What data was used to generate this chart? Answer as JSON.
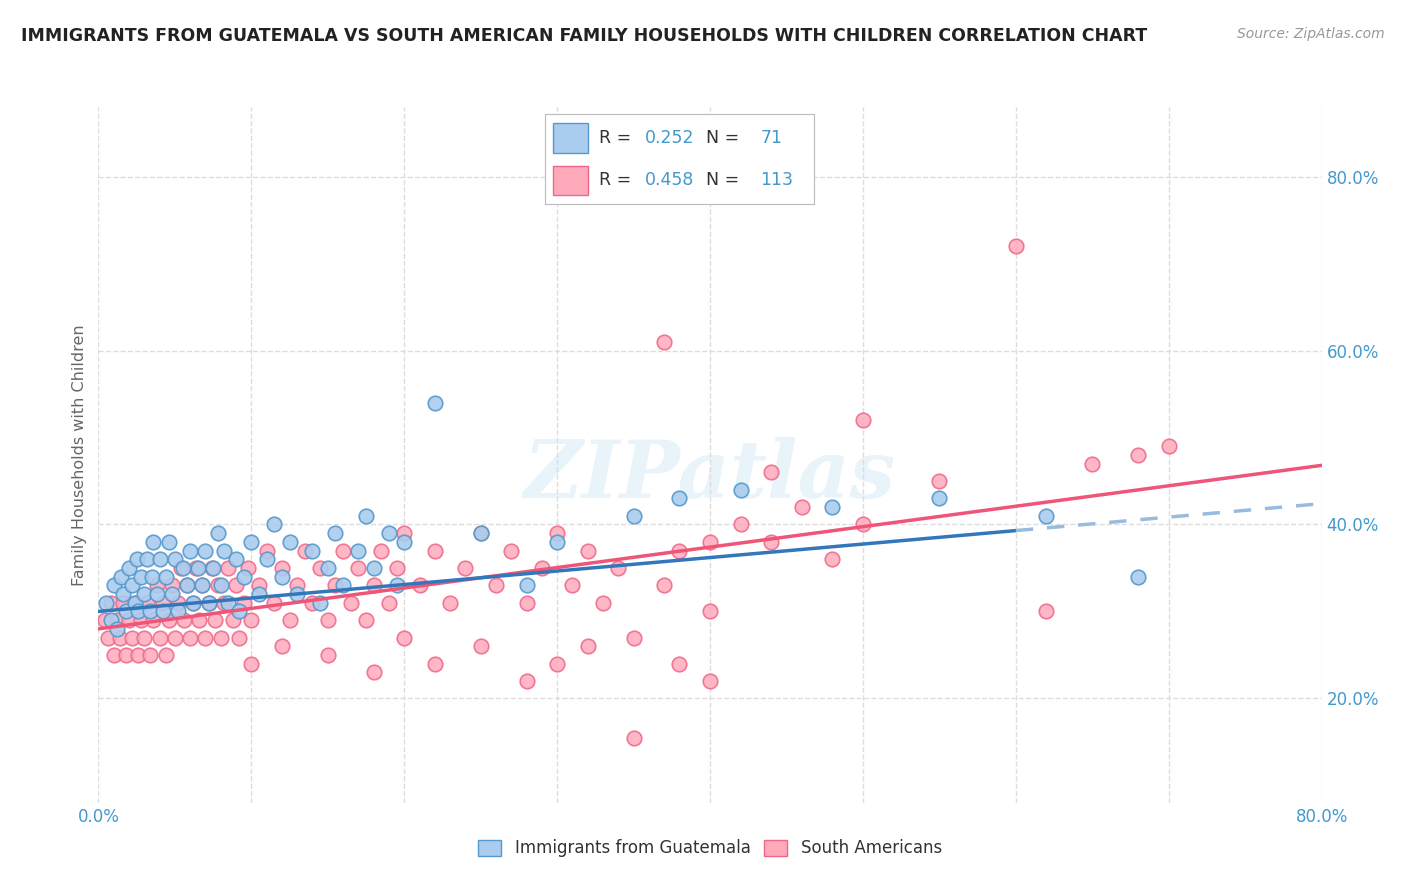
{
  "title": "IMMIGRANTS FROM GUATEMALA VS SOUTH AMERICAN FAMILY HOUSEHOLDS WITH CHILDREN CORRELATION CHART",
  "source": "Source: ZipAtlas.com",
  "ylabel": "Family Households with Children",
  "xlim": [
    0.0,
    0.8
  ],
  "ylim": [
    0.08,
    0.88
  ],
  "yticks": [
    0.2,
    0.4,
    0.6,
    0.8
  ],
  "ytick_labels": [
    "20.0%",
    "40.0%",
    "60.0%",
    "80.0%"
  ],
  "legend_r1": "R = 0.252",
  "legend_n1": "71",
  "legend_r2": "R = 0.458",
  "legend_n2": "113",
  "color_blue_fill": "#aaccee",
  "color_blue_edge": "#5599cc",
  "color_pink_fill": "#ffaabb",
  "color_pink_edge": "#ee6688",
  "color_blue_line": "#3377bb",
  "color_pink_line": "#ee5577",
  "color_blue_dashed": "#99bbdd",
  "watermark": "ZIPatlas",
  "background_color": "#ffffff",
  "grid_color": "#dddddd",
  "title_color": "#222222",
  "axis_label_color": "#4499cc",
  "blue_x": [
    0.005,
    0.008,
    0.01,
    0.012,
    0.015,
    0.016,
    0.018,
    0.02,
    0.022,
    0.024,
    0.025,
    0.026,
    0.028,
    0.03,
    0.032,
    0.034,
    0.035,
    0.036,
    0.038,
    0.04,
    0.042,
    0.044,
    0.046,
    0.048,
    0.05,
    0.052,
    0.055,
    0.058,
    0.06,
    0.062,
    0.065,
    0.068,
    0.07,
    0.072,
    0.075,
    0.078,
    0.08,
    0.082,
    0.085,
    0.09,
    0.092,
    0.095,
    0.1,
    0.105,
    0.11,
    0.115,
    0.12,
    0.125,
    0.13,
    0.14,
    0.145,
    0.15,
    0.155,
    0.16,
    0.17,
    0.175,
    0.18,
    0.19,
    0.195,
    0.2,
    0.22,
    0.25,
    0.28,
    0.3,
    0.35,
    0.38,
    0.42,
    0.48,
    0.55,
    0.62,
    0.68
  ],
  "blue_y": [
    0.31,
    0.29,
    0.33,
    0.28,
    0.34,
    0.32,
    0.3,
    0.35,
    0.33,
    0.31,
    0.36,
    0.3,
    0.34,
    0.32,
    0.36,
    0.3,
    0.34,
    0.38,
    0.32,
    0.36,
    0.3,
    0.34,
    0.38,
    0.32,
    0.36,
    0.3,
    0.35,
    0.33,
    0.37,
    0.31,
    0.35,
    0.33,
    0.37,
    0.31,
    0.35,
    0.39,
    0.33,
    0.37,
    0.31,
    0.36,
    0.3,
    0.34,
    0.38,
    0.32,
    0.36,
    0.4,
    0.34,
    0.38,
    0.32,
    0.37,
    0.31,
    0.35,
    0.39,
    0.33,
    0.37,
    0.41,
    0.35,
    0.39,
    0.33,
    0.38,
    0.54,
    0.39,
    0.33,
    0.38,
    0.41,
    0.43,
    0.44,
    0.42,
    0.43,
    0.41,
    0.34
  ],
  "pink_x": [
    0.004,
    0.006,
    0.008,
    0.01,
    0.012,
    0.014,
    0.016,
    0.018,
    0.02,
    0.022,
    0.024,
    0.026,
    0.028,
    0.03,
    0.032,
    0.034,
    0.036,
    0.038,
    0.04,
    0.042,
    0.044,
    0.046,
    0.048,
    0.05,
    0.052,
    0.054,
    0.056,
    0.058,
    0.06,
    0.062,
    0.064,
    0.066,
    0.068,
    0.07,
    0.072,
    0.074,
    0.076,
    0.078,
    0.08,
    0.082,
    0.085,
    0.088,
    0.09,
    0.092,
    0.095,
    0.098,
    0.1,
    0.105,
    0.11,
    0.115,
    0.12,
    0.125,
    0.13,
    0.135,
    0.14,
    0.145,
    0.15,
    0.155,
    0.16,
    0.165,
    0.17,
    0.175,
    0.18,
    0.185,
    0.19,
    0.195,
    0.2,
    0.21,
    0.22,
    0.23,
    0.24,
    0.25,
    0.26,
    0.27,
    0.28,
    0.29,
    0.3,
    0.31,
    0.32,
    0.33,
    0.34,
    0.35,
    0.37,
    0.38,
    0.4,
    0.42,
    0.44,
    0.46,
    0.48,
    0.5,
    0.37,
    0.4,
    0.44,
    0.5,
    0.55,
    0.6,
    0.62,
    0.65,
    0.68,
    0.7,
    0.1,
    0.12,
    0.15,
    0.18,
    0.2,
    0.22,
    0.25,
    0.28,
    0.3,
    0.32,
    0.35,
    0.38,
    0.4
  ],
  "pink_y": [
    0.29,
    0.27,
    0.31,
    0.25,
    0.29,
    0.27,
    0.31,
    0.25,
    0.29,
    0.27,
    0.31,
    0.25,
    0.29,
    0.27,
    0.31,
    0.25,
    0.29,
    0.33,
    0.27,
    0.31,
    0.25,
    0.29,
    0.33,
    0.27,
    0.31,
    0.35,
    0.29,
    0.33,
    0.27,
    0.31,
    0.35,
    0.29,
    0.33,
    0.27,
    0.31,
    0.35,
    0.29,
    0.33,
    0.27,
    0.31,
    0.35,
    0.29,
    0.33,
    0.27,
    0.31,
    0.35,
    0.29,
    0.33,
    0.37,
    0.31,
    0.35,
    0.29,
    0.33,
    0.37,
    0.31,
    0.35,
    0.29,
    0.33,
    0.37,
    0.31,
    0.35,
    0.29,
    0.33,
    0.37,
    0.31,
    0.35,
    0.39,
    0.33,
    0.37,
    0.31,
    0.35,
    0.39,
    0.33,
    0.37,
    0.31,
    0.35,
    0.39,
    0.33,
    0.37,
    0.31,
    0.35,
    0.27,
    0.33,
    0.37,
    0.38,
    0.4,
    0.38,
    0.42,
    0.36,
    0.4,
    0.61,
    0.3,
    0.46,
    0.52,
    0.45,
    0.72,
    0.3,
    0.47,
    0.48,
    0.49,
    0.24,
    0.26,
    0.25,
    0.23,
    0.27,
    0.24,
    0.26,
    0.22,
    0.24,
    0.26,
    0.155,
    0.24,
    0.22
  ]
}
